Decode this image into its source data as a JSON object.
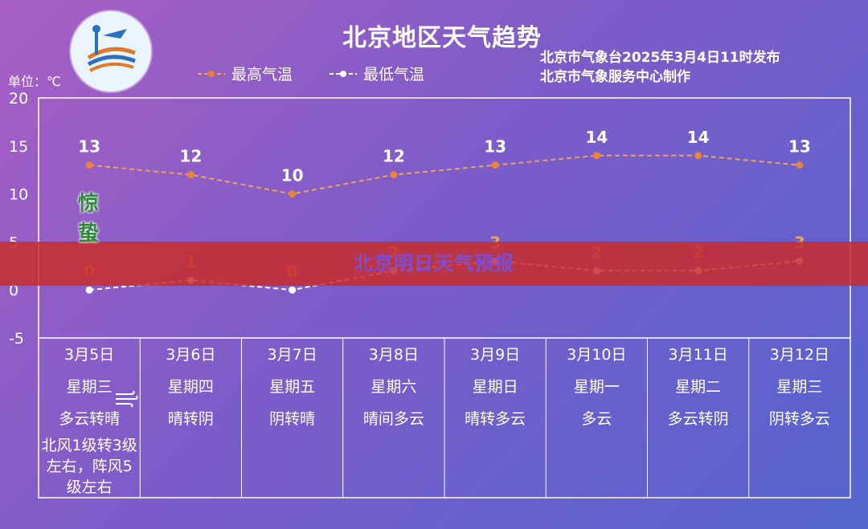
{
  "title": "北京地区天气趋势",
  "issuer": {
    "line1": "北京市气象台2025年3月4日11时发布",
    "line2": "北京市气象服务中心制作"
  },
  "unit_label": "单位：℃",
  "legend": {
    "high": "最高气温",
    "low": "最低气温"
  },
  "banner": "北京明日天气预报",
  "solar_term": "惊蛰",
  "colors": {
    "high": "#f0a05a",
    "low": "#ffffff",
    "banner": "#c82c2c"
  },
  "chart_data": {
    "type": "line",
    "categories": [
      "3月5日",
      "3月6日",
      "3月7日",
      "3月8日",
      "3月9日",
      "3月10日",
      "3月11日",
      "3月12日"
    ],
    "series": [
      {
        "name": "最高气温",
        "values": [
          13,
          12,
          10,
          12,
          13,
          14,
          14,
          13
        ]
      },
      {
        "name": "最低气温",
        "values": [
          0,
          1,
          0,
          2,
          3,
          2,
          2,
          3
        ]
      }
    ],
    "ylim": [
      -5,
      20
    ],
    "yticks": [
      20,
      15,
      10,
      5,
      0,
      -5
    ],
    "ylabel": "单位：℃",
    "grid": false,
    "legend": "top"
  },
  "days": [
    {
      "date": "3月5日",
      "weekday": "星期三",
      "weather": "多云转晴",
      "extra": "北风1级转3级左右，阵风5级左右"
    },
    {
      "date": "3月6日",
      "weekday": "星期四",
      "weather": "晴转阴"
    },
    {
      "date": "3月7日",
      "weekday": "星期五",
      "weather": "阴转晴"
    },
    {
      "date": "3月8日",
      "weekday": "星期六",
      "weather": "晴间多云"
    },
    {
      "date": "3月9日",
      "weekday": "星期日",
      "weather": "晴转多云"
    },
    {
      "date": "3月10日",
      "weekday": "星期一",
      "weather": "多云"
    },
    {
      "date": "3月11日",
      "weekday": "星期二",
      "weather": "多云转阴"
    },
    {
      "date": "3月12日",
      "weekday": "星期三",
      "weather": "阴转多云"
    }
  ]
}
